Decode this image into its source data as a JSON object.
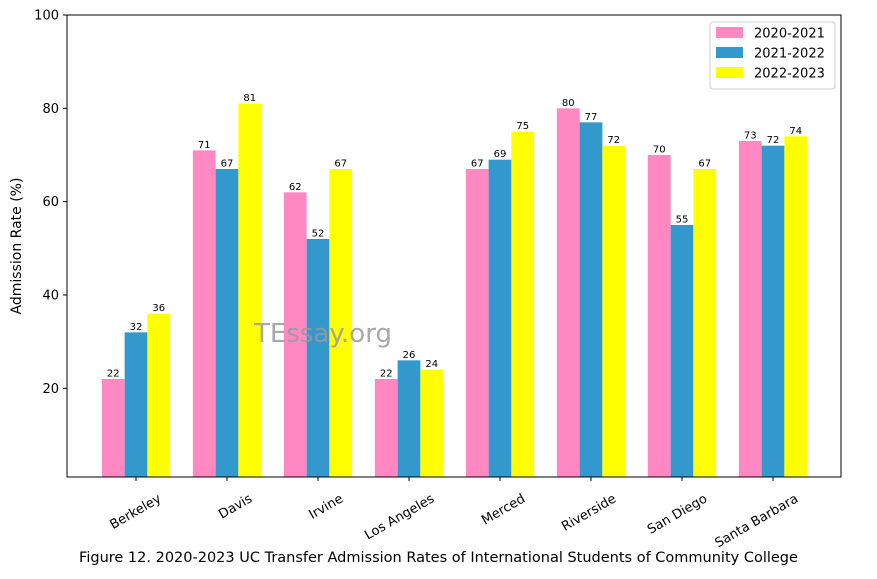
{
  "chart_data": {
    "type": "bar",
    "categories": [
      "Berkeley",
      "Davis",
      "Irvine",
      "Los Angeles",
      "Merced",
      "Riverside",
      "San Diego",
      "Santa Barbara"
    ],
    "series": [
      {
        "name": "2020-2021",
        "color": "#ff88c2",
        "values": [
          22,
          71,
          62,
          22,
          67,
          80,
          70,
          73
        ]
      },
      {
        "name": "2021-2022",
        "color": "#3399cc",
        "values": [
          32,
          67,
          52,
          26,
          69,
          77,
          55,
          72
        ]
      },
      {
        "name": "2022-2023",
        "color": "#ffff00",
        "values": [
          36,
          81,
          67,
          24,
          75,
          72,
          67,
          74
        ]
      }
    ],
    "xlabel": "",
    "ylabel": "Admission Rate (%)",
    "ylim": [
      1,
      100
    ],
    "yticks": [
      20,
      40,
      60,
      80,
      100
    ],
    "legend_position": "top-right",
    "grid": false,
    "watermark": "TEssay.org"
  },
  "caption": "Figure 12. 2020-2023 UC Transfer Admission Rates of International Students of Community College"
}
